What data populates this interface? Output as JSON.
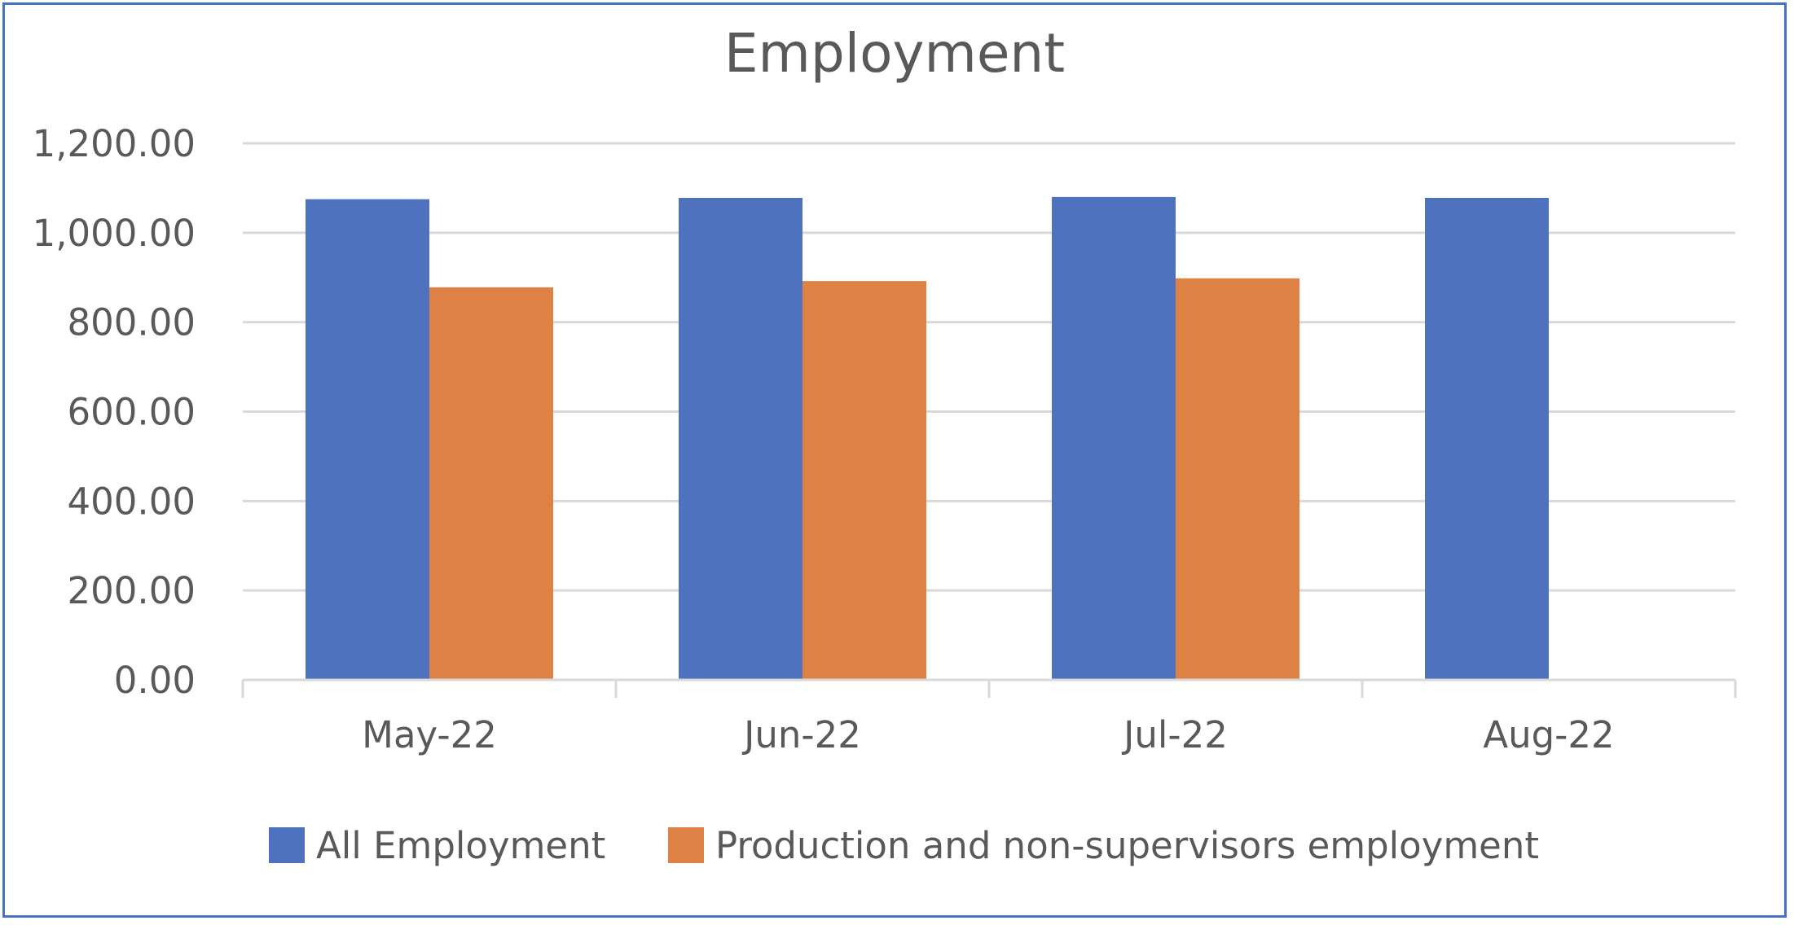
{
  "chart_data": {
    "type": "bar",
    "title": "Employment",
    "categories": [
      "May-22",
      "Jun-22",
      "Jul-22",
      "Aug-22"
    ],
    "series": [
      {
        "name": "All Employment",
        "color": "#4f72be",
        "values": [
          1075,
          1078,
          1080,
          1078
        ]
      },
      {
        "name": "Production and non-supervisors employment",
        "color": "#dd8244",
        "values": [
          878,
          892,
          898,
          null
        ]
      }
    ],
    "yticks": [
      "0.00",
      "200.00",
      "400.00",
      "600.00",
      "800.00",
      "1,000.00",
      "1,200.00"
    ],
    "ylim": [
      0,
      1200
    ],
    "grid": true,
    "legend_position": "bottom"
  }
}
